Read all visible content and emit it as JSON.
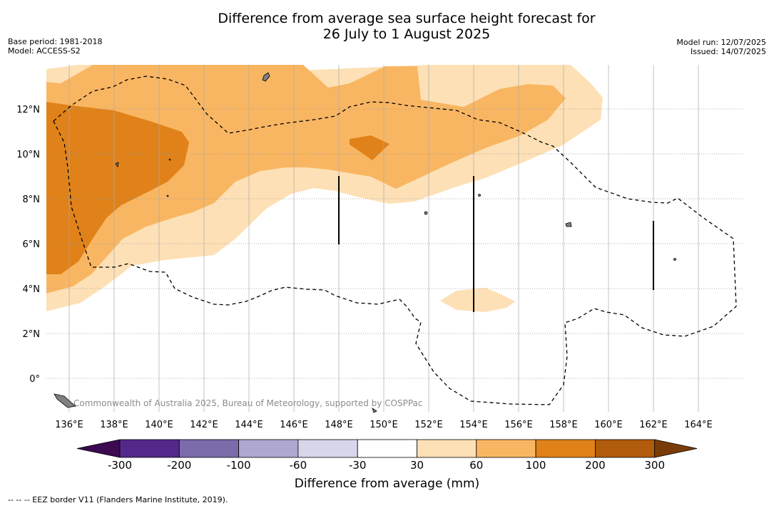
{
  "title_line1": "Difference from average sea surface height forecast for",
  "title_line2": "26 July to 1 August 2025",
  "meta_left": [
    "Base period: 1981-2018",
    "Model: ACCESS-S2"
  ],
  "meta_right": [
    "Model run: 12/07/2025",
    "Issued: 14/07/2025"
  ],
  "map": {
    "lon_ticks": [
      "136°E",
      "138°E",
      "140°E",
      "142°E",
      "144°E",
      "146°E",
      "148°E",
      "150°E",
      "152°E",
      "154°E",
      "156°E",
      "158°E",
      "160°E",
      "162°E",
      "164°E"
    ],
    "lat_ticks": [
      "12°N",
      "10°N",
      "8°N",
      "6°N",
      "4°N",
      "2°N",
      "0°"
    ],
    "copyright": "Commonwealth of Australia 2025, Bureau of Meteorology, supported by COSPPac",
    "colors": {
      "c30_60": "#fde0b5",
      "c60_100": "#f9b662",
      "c100_200": "#e08219",
      "land": "#808080"
    }
  },
  "colorbar": {
    "title": "Difference from average (mm)",
    "ticks": [
      "-300",
      "-200",
      "-100",
      "-60",
      "-30",
      "30",
      "60",
      "100",
      "200",
      "300"
    ],
    "colors": [
      "#3d0a52",
      "#54288b",
      "#7b6bab",
      "#aea7d0",
      "#d7d6ea",
      "#ffffff",
      "#fde0b5",
      "#f9b662",
      "#e08219",
      "#b15b0c",
      "#7a3c06"
    ]
  },
  "footnote": "--  --  -- EEZ border V11 (Flanders Marine Institute, 2019)."
}
